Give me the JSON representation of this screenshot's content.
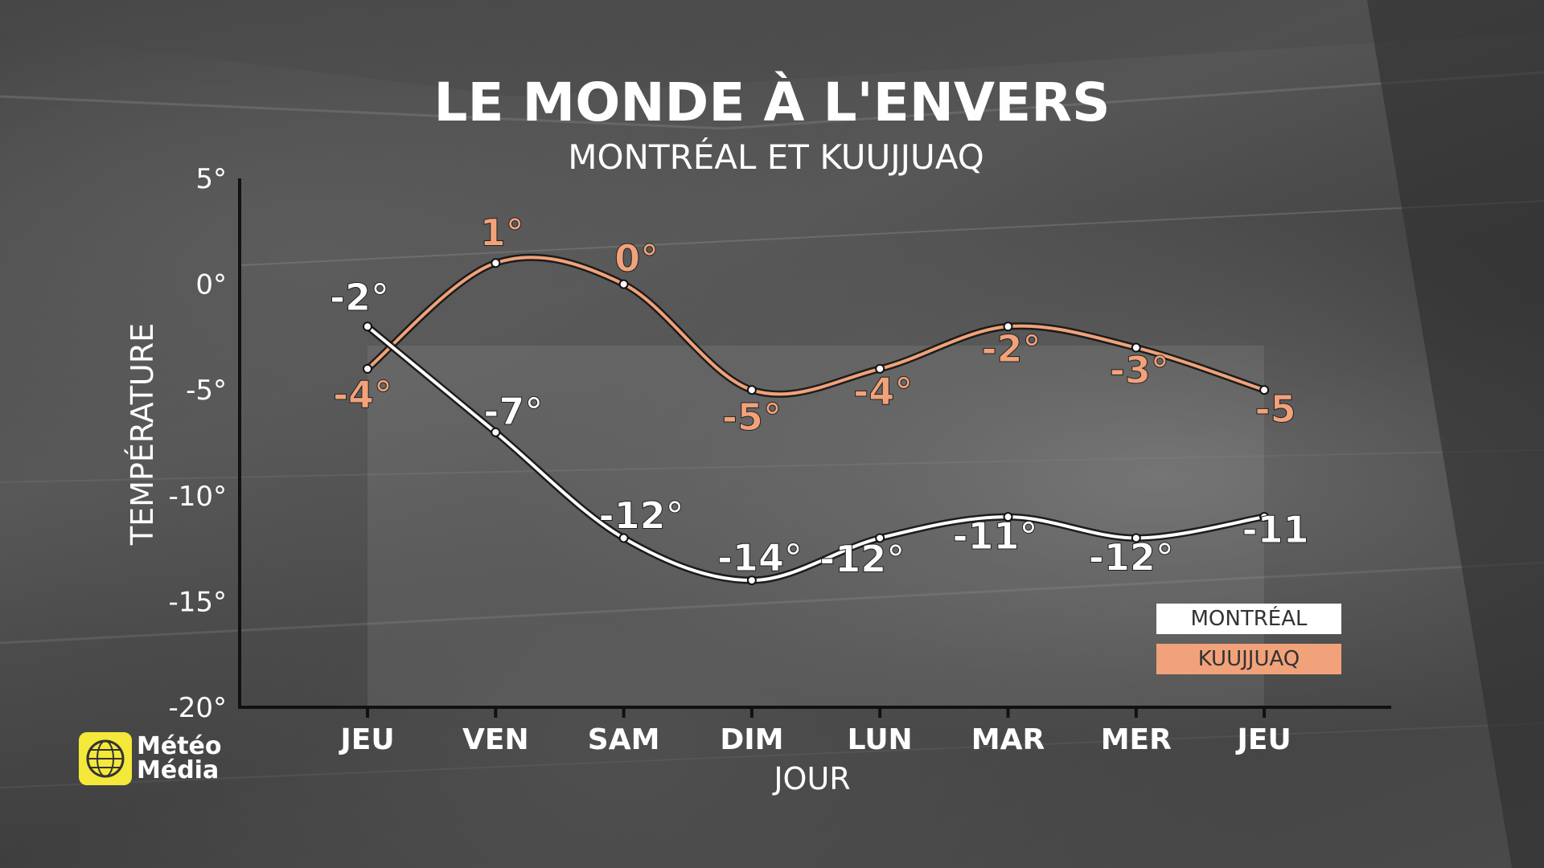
{
  "chart_data": {
    "type": "line",
    "title": "LE MONDE À L'ENVERS",
    "subtitle": "MONTRÉAL ET KUUJJUAQ",
    "xlabel": "JOUR",
    "ylabel": "TEMPÉRATURE",
    "categories": [
      "JEU",
      "VEN",
      "SAM",
      "DIM",
      "LUN",
      "MAR",
      "MER",
      "JEU"
    ],
    "ylim": [
      -20,
      5
    ],
    "yticks": [
      5,
      0,
      -5,
      -10,
      -15,
      -20
    ],
    "ytick_labels": [
      "5°",
      "0°",
      "-5°",
      "-10°",
      "-15°",
      "-20°"
    ],
    "grid": false,
    "legend_position": "bottom-right",
    "series": [
      {
        "name": "MONTRÉAL",
        "color": "#ffffff",
        "values": [
          -2,
          -7,
          -12,
          -14,
          -12,
          -11,
          -12,
          -11
        ],
        "labels": [
          "-2°",
          "-7°",
          "-12°",
          "-14°",
          "-12°",
          "-11°",
          "-12°",
          "-11"
        ]
      },
      {
        "name": "KUUJJUAQ",
        "color": "#f2a27a",
        "values": [
          -4,
          1,
          0,
          -5,
          -4,
          -2,
          -3,
          -5
        ],
        "labels": [
          "-4°",
          "1°",
          "0°",
          "-5°",
          "-4°",
          "-2°",
          "-3°",
          "-5"
        ]
      }
    ]
  },
  "logo": {
    "line1": "Météo",
    "line2": "Média",
    "mark_color": "#f4e83a"
  }
}
